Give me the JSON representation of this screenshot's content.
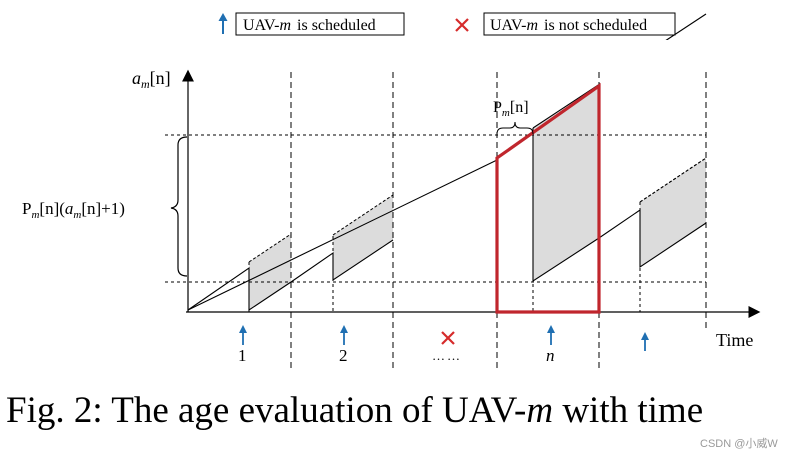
{
  "legend": {
    "scheduled_label": "UAV-",
    "scheduled_var": "m",
    "scheduled_suffix": "is scheduled",
    "not_scheduled_label": "UAV-",
    "not_scheduled_var": "m",
    "not_scheduled_suffix": "is not scheduled"
  },
  "axes": {
    "y_label_a": "a",
    "y_label_sub": "m",
    "y_label_arg": "[n]",
    "x_label": "Time"
  },
  "annotations": {
    "p_label_top": "P",
    "p_label_top_sub": "m",
    "p_label_top_arg": "[n]",
    "p_brace_left_1": "P",
    "p_brace_left_sub1": "m",
    "p_brace_left_2": "[n](",
    "p_brace_left_a": "a",
    "p_brace_left_sub2": "m",
    "p_brace_left_3": "[n]+1)"
  },
  "ticks": {
    "t1": "1",
    "t2": "2",
    "dots": "……",
    "tn": "n"
  },
  "caption": "Fig. 2: The age evaluation of UAV-",
  "caption_var": "m",
  "caption_tail": " with time",
  "watermark": "CSDN @小威W",
  "colors": {
    "arrow_blue": "#1f6fb2",
    "cross_red": "#d62b2b",
    "highlight_red": "#c0262d",
    "shade": "#dcdcdc"
  }
}
